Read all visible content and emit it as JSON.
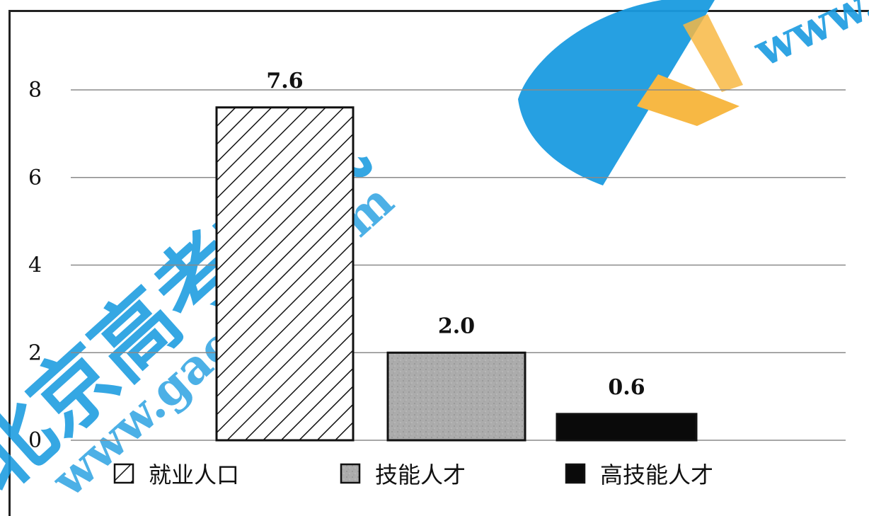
{
  "chart_data": {
    "type": "bar",
    "categories": [
      "就业人口",
      "技能人才",
      "高技能人才"
    ],
    "values": [
      7.6,
      2.0,
      0.6
    ],
    "data_labels": [
      "7.6",
      "2.0",
      "0.6"
    ],
    "ylim": [
      0,
      8
    ],
    "yticks": [
      0,
      2,
      4,
      6,
      8
    ],
    "ytick_labels": [
      "0",
      "2",
      "4",
      "6",
      "8"
    ],
    "grid": true,
    "legend": {
      "placement": "bottom",
      "entries": [
        {
          "label": "就业人口",
          "pattern": "diagonal-hatch"
        },
        {
          "label": "技能人才",
          "pattern": "gray-texture"
        },
        {
          "label": "高技能人才",
          "pattern": "solid-black"
        }
      ]
    },
    "colors": {
      "hatch": "#111111",
      "gray": "#a9a9a9",
      "solid": "#0a0a0a",
      "grid": "#8a8a8a"
    }
  },
  "watermark": {
    "text_cn": "北京高考在线",
    "url": "www.gaokzx.com",
    "colors": {
      "blue": "#1a9be0",
      "orange": "#f7b53a"
    }
  }
}
